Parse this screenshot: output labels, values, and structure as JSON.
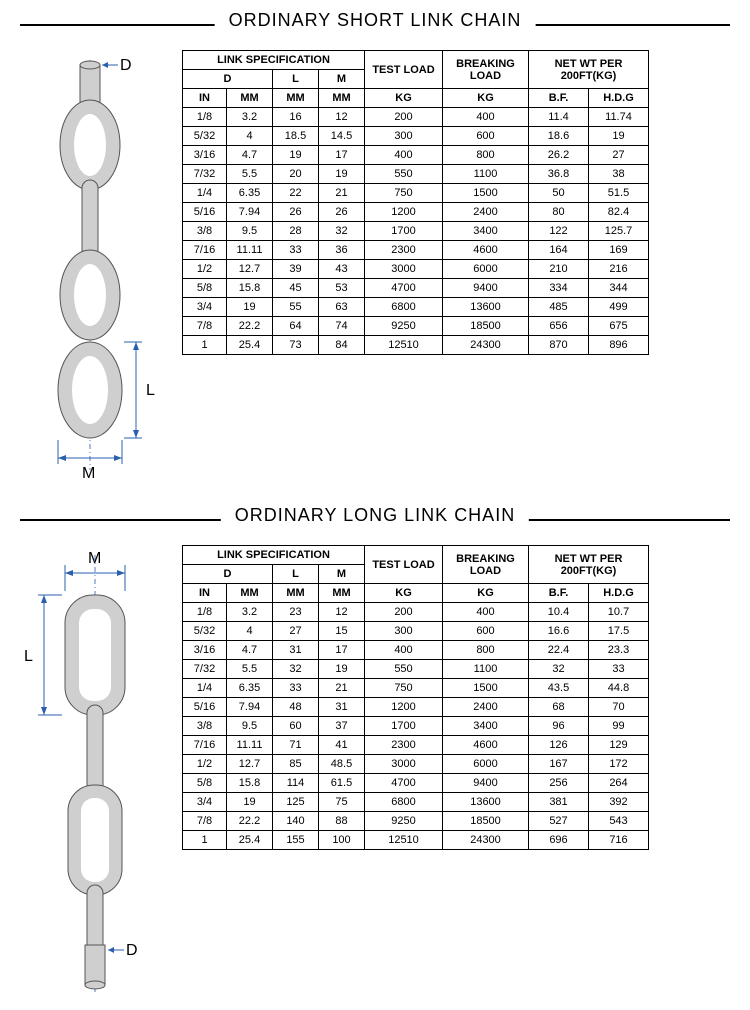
{
  "short": {
    "title": "ORDINARY SHORT LINK CHAIN",
    "headers": {
      "link_spec": "LINK SPECIFICATION",
      "test_load": "TEST LOAD",
      "break_load": "BREAKING LOAD",
      "net_wt": "NET WT PER 200FT(KG)",
      "D": "D",
      "L": "L",
      "M": "M",
      "IN": "IN",
      "MM": "MM",
      "KG": "KG",
      "BF": "B.F.",
      "HDG": "H.D.G"
    },
    "rows": [
      [
        "1/8",
        "3.2",
        "16",
        "12",
        "200",
        "400",
        "11.4",
        "11.74"
      ],
      [
        "5/32",
        "4",
        "18.5",
        "14.5",
        "300",
        "600",
        "18.6",
        "19"
      ],
      [
        "3/16",
        "4.7",
        "19",
        "17",
        "400",
        "800",
        "26.2",
        "27"
      ],
      [
        "7/32",
        "5.5",
        "20",
        "19",
        "550",
        "1100",
        "36.8",
        "38"
      ],
      [
        "1/4",
        "6.35",
        "22",
        "21",
        "750",
        "1500",
        "50",
        "51.5"
      ],
      [
        "5/16",
        "7.94",
        "26",
        "26",
        "1200",
        "2400",
        "80",
        "82.4"
      ],
      [
        "3/8",
        "9.5",
        "28",
        "32",
        "1700",
        "3400",
        "122",
        "125.7"
      ],
      [
        "7/16",
        "11.11",
        "33",
        "36",
        "2300",
        "4600",
        "164",
        "169"
      ],
      [
        "1/2",
        "12.7",
        "39",
        "43",
        "3000",
        "6000",
        "210",
        "216"
      ],
      [
        "5/8",
        "15.8",
        "45",
        "53",
        "4700",
        "9400",
        "334",
        "344"
      ],
      [
        "3/4",
        "19",
        "55",
        "63",
        "6800",
        "13600",
        "485",
        "499"
      ],
      [
        "7/8",
        "22.2",
        "64",
        "74",
        "9250",
        "18500",
        "656",
        "675"
      ],
      [
        "1",
        "25.4",
        "73",
        "84",
        "12510",
        "24300",
        "870",
        "896"
      ]
    ],
    "diagram": {
      "D": "D",
      "L": "L",
      "M": "M"
    }
  },
  "long": {
    "title": "ORDINARY LONG LINK CHAIN",
    "headers": {
      "link_spec": "LINK SPECIFICATION",
      "test_load": "TEST LOAD",
      "break_load": "BREAKING LOAD",
      "net_wt": "NET WT PER 200FT(KG)",
      "D": "D",
      "L": "L",
      "M": "M",
      "IN": "IN",
      "MM": "MM",
      "KG": "KG",
      "BF": "B.F.",
      "HDG": "H.D.G"
    },
    "rows": [
      [
        "1/8",
        "3.2",
        "23",
        "12",
        "200",
        "400",
        "10.4",
        "10.7"
      ],
      [
        "5/32",
        "4",
        "27",
        "15",
        "300",
        "600",
        "16.6",
        "17.5"
      ],
      [
        "3/16",
        "4.7",
        "31",
        "17",
        "400",
        "800",
        "22.4",
        "23.3"
      ],
      [
        "7/32",
        "5.5",
        "32",
        "19",
        "550",
        "1100",
        "32",
        "33"
      ],
      [
        "1/4",
        "6.35",
        "33",
        "21",
        "750",
        "1500",
        "43.5",
        "44.8"
      ],
      [
        "5/16",
        "7.94",
        "48",
        "31",
        "1200",
        "2400",
        "68",
        "70"
      ],
      [
        "3/8",
        "9.5",
        "60",
        "37",
        "1700",
        "3400",
        "96",
        "99"
      ],
      [
        "7/16",
        "11.11",
        "71",
        "41",
        "2300",
        "4600",
        "126",
        "129"
      ],
      [
        "1/2",
        "12.7",
        "85",
        "48.5",
        "3000",
        "6000",
        "167",
        "172"
      ],
      [
        "5/8",
        "15.8",
        "114",
        "61.5",
        "4700",
        "9400",
        "256",
        "264"
      ],
      [
        "3/4",
        "19",
        "125",
        "75",
        "6800",
        "13600",
        "381",
        "392"
      ],
      [
        "7/8",
        "22.2",
        "140",
        "88",
        "9250",
        "18500",
        "527",
        "543"
      ],
      [
        "1",
        "25.4",
        "155",
        "100",
        "12510",
        "24300",
        "696",
        "716"
      ]
    ],
    "diagram": {
      "D": "D",
      "L": "L",
      "M": "M"
    }
  },
  "style": {
    "page_bg": "#ffffff",
    "text_color": "#000000",
    "border_color": "#000000",
    "dim_color": "#2a5fb0",
    "link_fill": "#cfcfcf",
    "link_stroke": "#555555",
    "title_fontsize": 18,
    "table_fontsize": 11
  }
}
